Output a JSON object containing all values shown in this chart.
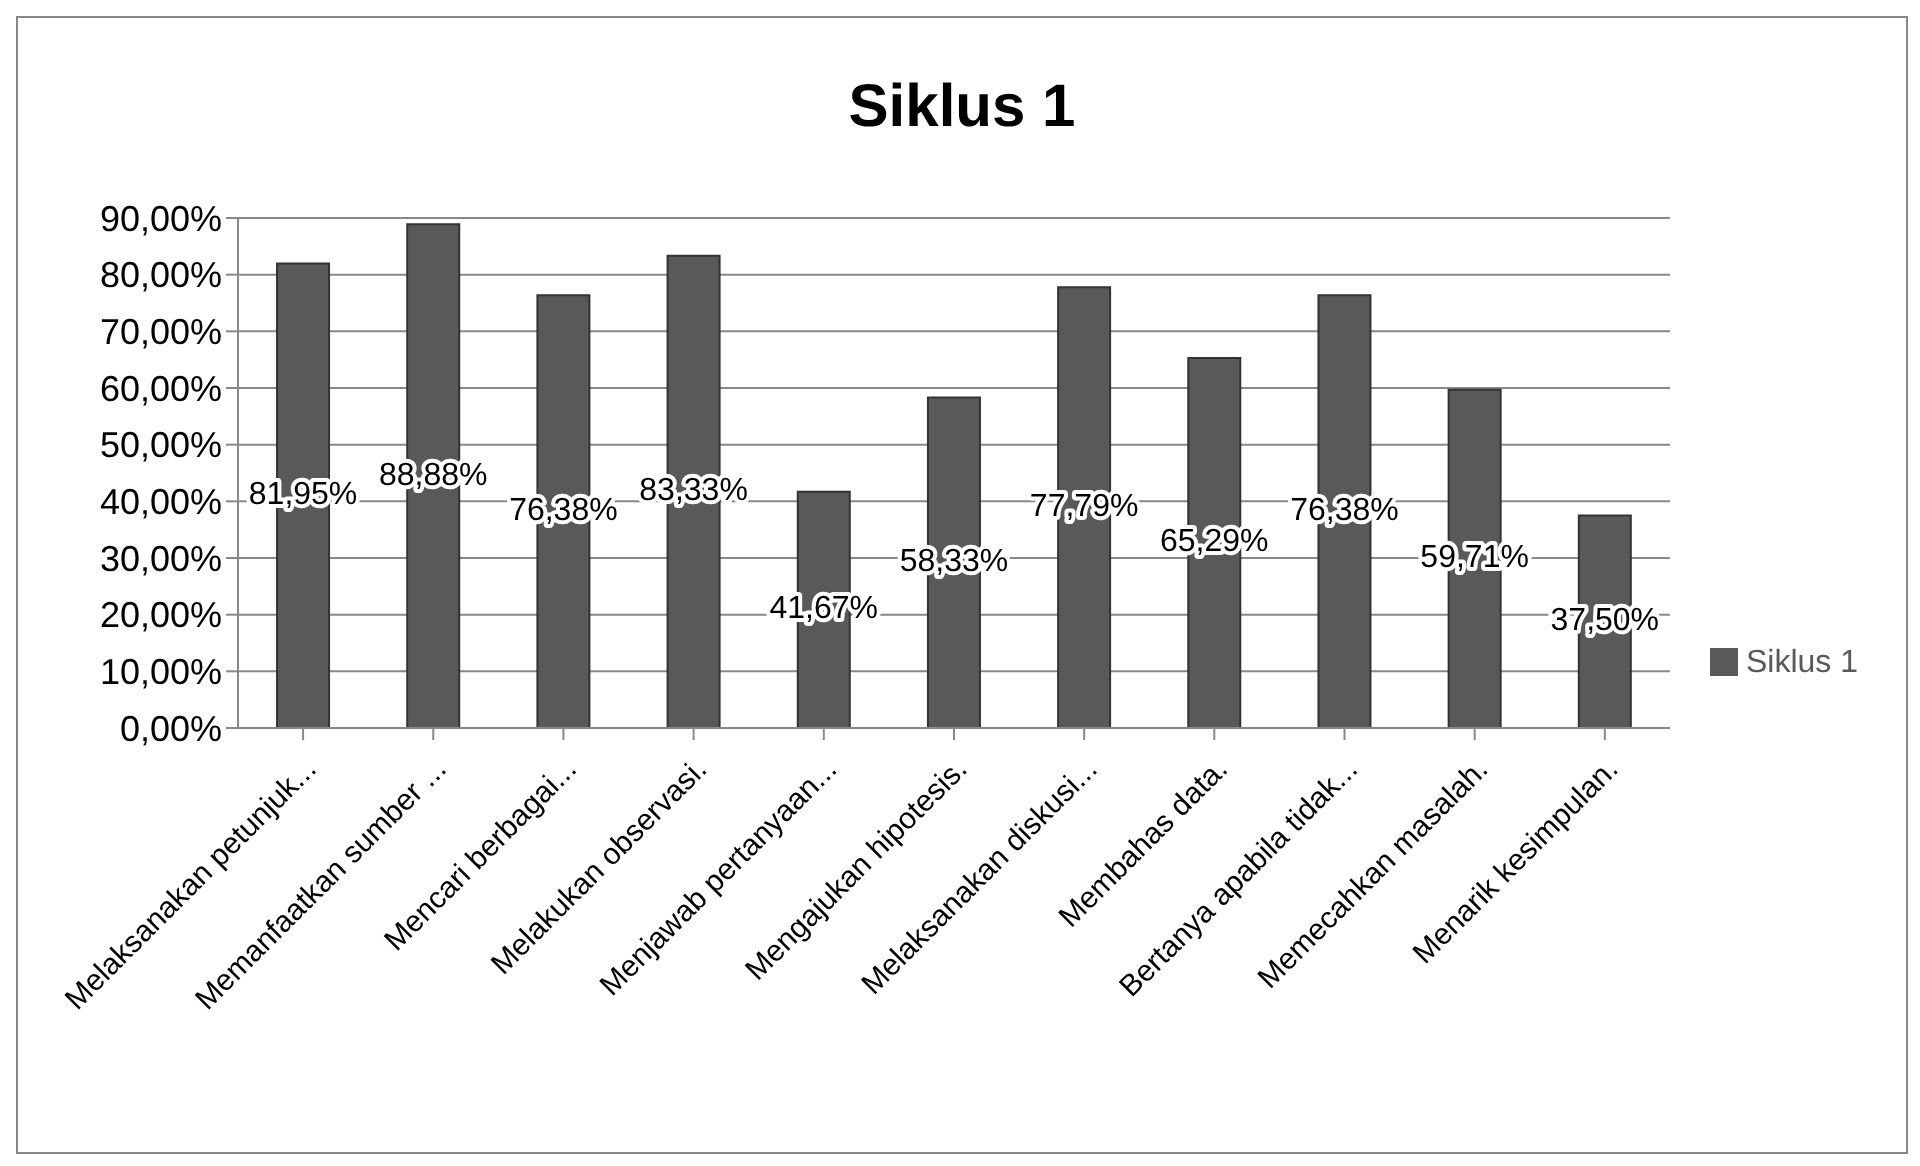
{
  "chart_data": {
    "type": "bar",
    "title": "Siklus 1",
    "categories": [
      "Melaksanakan petunjuk...",
      "Memanfaatkan sumber ...",
      "Mencari berbagai...",
      "Melakukan observasi.",
      "Menjawab pertanyaan...",
      "Mengajukan hipotesis.",
      "Melaksanakan diskusi...",
      "Membahas data.",
      "Bertanya apabila tidak...",
      "Memecahkan masalah.",
      "Menarik kesimpulan."
    ],
    "series": [
      {
        "name": "Siklus 1",
        "color": "#595959",
        "values": [
          81.95,
          88.88,
          76.38,
          83.33,
          41.67,
          58.33,
          77.79,
          65.29,
          76.38,
          59.71,
          37.5
        ],
        "value_labels": [
          "81,95%",
          "88,88%",
          "76,38%",
          "83,33%",
          "41,67%",
          "58,33%",
          "77,79%",
          "65,29%",
          "76,38%",
          "59,71%",
          "37,50%"
        ]
      }
    ],
    "ylim": [
      0,
      90
    ],
    "yticks": [
      {
        "value": 0,
        "label": "0,00%"
      },
      {
        "value": 10,
        "label": "10,00%"
      },
      {
        "value": 20,
        "label": "20,00%"
      },
      {
        "value": 30,
        "label": "30,00%"
      },
      {
        "value": 40,
        "label": "40,00%"
      },
      {
        "value": 50,
        "label": "50,00%"
      },
      {
        "value": 60,
        "label": "60,00%"
      },
      {
        "value": 70,
        "label": "70,00%"
      },
      {
        "value": 80,
        "label": "80,00%"
      },
      {
        "value": 90,
        "label": "90,00%"
      }
    ],
    "grid": "y",
    "legend": "right"
  }
}
